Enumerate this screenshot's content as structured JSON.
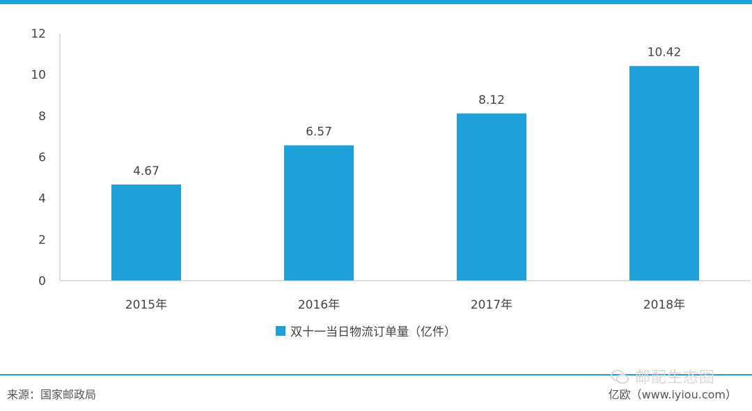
{
  "chart_data": {
    "type": "bar",
    "categories": [
      "2015年",
      "2016年",
      "2017年",
      "2018年"
    ],
    "series": [
      {
        "name": "双十一当日物流订单量（亿件）",
        "values": [
          4.67,
          6.57,
          8.12,
          10.42
        ]
      }
    ],
    "data_labels": [
      "4.67",
      "6.57",
      "8.12",
      "10.42"
    ],
    "title": "",
    "xlabel": "",
    "ylabel": "",
    "ylim": [
      0,
      12
    ],
    "yticks": [
      0,
      2,
      4,
      6,
      8,
      10,
      12
    ],
    "grid": false,
    "legend": "bottom",
    "colors": {
      "bar": "#1fa0d8",
      "accent": "#1fa0d8",
      "axis": "#bfbfbf"
    }
  },
  "footer": {
    "source": "来源：国家邮政局",
    "brand": "亿欧（www.iyiou.com）"
  },
  "watermark": {
    "icon": "wechat-icon",
    "text": "邮配生态圈"
  }
}
